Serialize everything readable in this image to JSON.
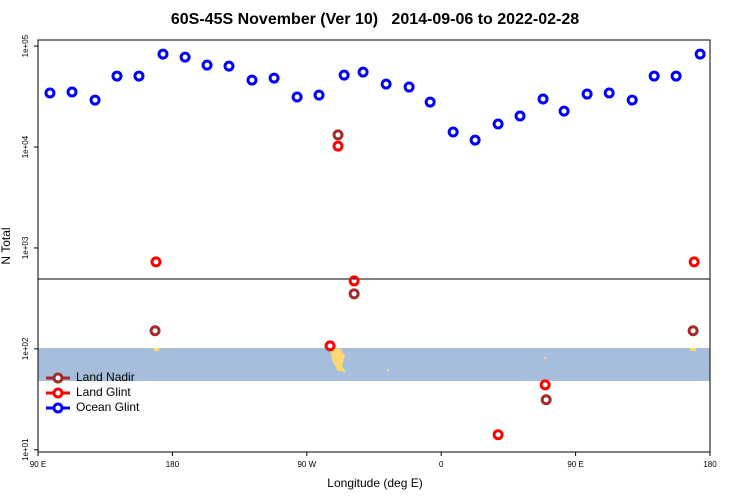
{
  "chart_data": {
    "type": "scatter",
    "title": "60S-45S November (Ver 10)   2014-09-06 to 2022-02-28",
    "xlabel": "Longitude (deg E)",
    "ylabel": "N Total",
    "log_y": true,
    "legend": "bottom-left",
    "xlim": [
      90,
      540
    ],
    "xticks": [
      {
        "value": 90,
        "label": "90 E"
      },
      {
        "value": 180,
        "label": "180"
      },
      {
        "value": 270,
        "label": "90 W"
      },
      {
        "value": 360,
        "label": "0"
      },
      {
        "value": 450,
        "label": "90 E"
      },
      {
        "value": 540,
        "label": "180"
      }
    ],
    "ylim": [
      9.5,
      115000
    ],
    "yticks": [
      {
        "value": 10,
        "label": "1e+01"
      },
      {
        "value": 100,
        "label": "1e+02"
      },
      {
        "value": 1000,
        "label": "1e+03"
      },
      {
        "value": 10000,
        "label": "1e+04"
      },
      {
        "value": 100000,
        "label": "1e+05"
      }
    ],
    "series": [
      {
        "name": "Land Nadir",
        "color": "#a52a2a",
        "x": [
          168.4,
          290.9,
          301.7,
          430.3,
          528.7
        ],
        "values": [
          151,
          13200,
          351,
          31.3,
          151
        ]
      },
      {
        "name": "Land Glint",
        "color": "#ff0000",
        "x": [
          169,
          290.9,
          301.7,
          285.6,
          429.6,
          398.1,
          529.4
        ],
        "values": [
          727,
          10200,
          471,
          107,
          44,
          14.1,
          727
        ]
      },
      {
        "name": "Ocean Glint",
        "color": "#0000ff",
        "x": [
          98,
          112.8,
          128.2,
          142.9,
          157.6,
          173.7,
          188.5,
          203.2,
          217.9,
          233.3,
          248.1,
          263.5,
          278.2,
          295,
          307.7,
          323.1,
          338.5,
          352.6,
          368,
          382.7,
          398.1,
          412.8,
          428.2,
          442.3,
          457.7,
          472.5,
          487.9,
          502.6,
          517.3,
          533.4
        ],
        "values": [
          34300,
          35100,
          29200,
          50500,
          50500,
          83300,
          77800,
          64800,
          63400,
          46000,
          48200,
          31300,
          32700,
          51600,
          55300,
          42000,
          39300,
          27900,
          14100,
          11700,
          16900,
          20300,
          29900,
          22700,
          33500,
          34300,
          29200,
          50500,
          50500,
          83300
        ]
      }
    ]
  }
}
